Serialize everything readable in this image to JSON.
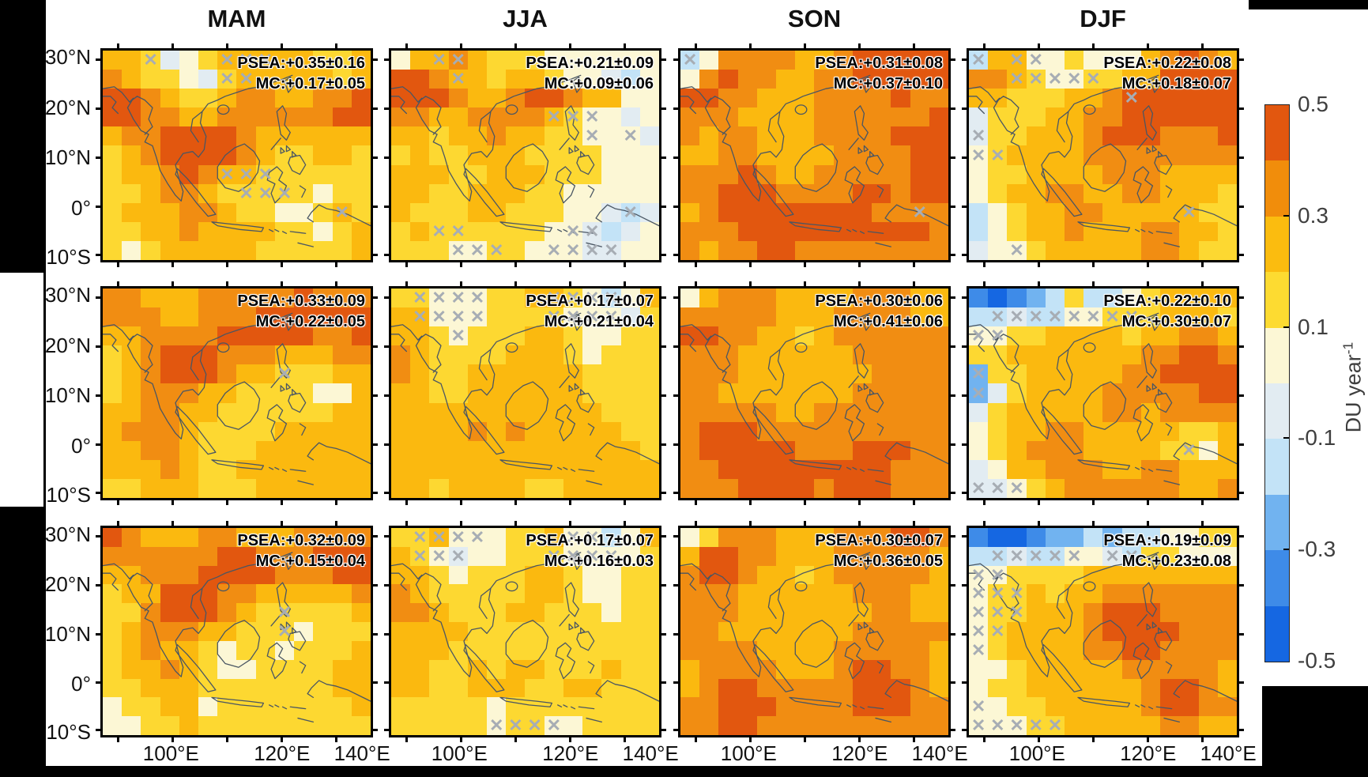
{
  "figure": {
    "col_titles": [
      "MAM",
      "JJA",
      "SON",
      "DJF"
    ],
    "y_tick_labels": [
      "30°N",
      "20°N",
      "10°N",
      "0°",
      "10°S"
    ],
    "x_tick_labels": [
      "100°E",
      "120°E",
      "140°E"
    ],
    "hatch_glyph": "✕",
    "background_color": "#ffffff",
    "frame_color": "#000000"
  },
  "colorbar": {
    "tick_labels": [
      "0.5",
      "0.3",
      "0.1",
      "-0.1",
      "-0.3",
      "-0.5"
    ],
    "unit_main": "DU year",
    "unit_sup": "-1",
    "segment_colors": [
      "#e2570f",
      "#f18d0b",
      "#fbbc0f",
      "#fddb31",
      "#fcf7d5",
      "#e2ecf2",
      "#c3e3f7",
      "#71b3f0",
      "#3e8be8",
      "#1567e2"
    ],
    "value_range": [
      -0.5,
      0.5
    ]
  },
  "palette": {
    "0": "#fcf7d5",
    "1": "#fdd831",
    "2": "#fbb90f",
    "3": "#f18d12",
    "4": "#e2570f",
    "5": "#e2ecf2",
    "6": "#c3e3f7",
    "7": "#71b3f0",
    "8": "#3e8be8",
    "9": "#1567e2"
  },
  "chart_data": {
    "type": "heatmap",
    "title": "",
    "columns": [
      "MAM",
      "JJA",
      "SON",
      "DJF"
    ],
    "n_rows": 3,
    "xlabel_ticks": [
      "100°E",
      "120°E",
      "140°E"
    ],
    "ylabel_ticks": [
      "30°N",
      "20°N",
      "10°N",
      "0°",
      "10°S"
    ],
    "lon_range_approx": [
      87,
      137
    ],
    "lat_range_approx": [
      -12,
      32
    ],
    "colorbar_unit": "DU year-1",
    "colorbar_ticks": [
      0.5,
      0.3,
      0.1,
      -0.1,
      -0.3,
      -0.5
    ],
    "panels": [
      {
        "row": 1,
        "season": "MAM",
        "psea_label": "PSEA:+0.35±0.16",
        "mc_label": "MC:+0.17±0.05",
        "psea_value": 0.35,
        "psea_err": 0.16,
        "mc_value": 0.17,
        "mc_err": 0.05,
        "grid": [
          "22150122222112",
          "32110512222212",
          "44321123322334",
          "44332233333344",
          "23344443222222",
          "12344443211221",
          "12234322111111",
          "11233211111011",
          "12223321100121",
          "11223222211012",
          "10122222111112"
        ],
        "hatch": [
          [
            0,
            2
          ],
          [
            0,
            6
          ],
          [
            0,
            7
          ],
          [
            0,
            8
          ],
          [
            1,
            6
          ],
          [
            1,
            7
          ],
          [
            6,
            6
          ],
          [
            6,
            7
          ],
          [
            6,
            8
          ],
          [
            7,
            7
          ],
          [
            7,
            8
          ],
          [
            7,
            9
          ],
          [
            8,
            12
          ]
        ]
      },
      {
        "row": 1,
        "season": "JJA",
        "psea_label": "PSEA:+0.21±0.09",
        "mc_label": "MC:+0.09±0.06",
        "psea_value": 0.21,
        "psea_err": 0.09,
        "mc_value": 0.09,
        "mc_err": 0.06,
        "grid": [
          "02232111000000",
          "44322122100560",
          "44432234432200",
          "33223333210050",
          "22122322110005",
          "12112221111000",
          "22211222111000",
          "22112221100000",
          "21112211100565",
          "12111111005650",
          "11100110005500"
        ],
        "hatch": [
          [
            0,
            2
          ],
          [
            0,
            3
          ],
          [
            1,
            3
          ],
          [
            3,
            8
          ],
          [
            3,
            9
          ],
          [
            3,
            10
          ],
          [
            4,
            10
          ],
          [
            4,
            12
          ],
          [
            9,
            2
          ],
          [
            9,
            3
          ],
          [
            10,
            3
          ],
          [
            10,
            4
          ],
          [
            10,
            5
          ],
          [
            9,
            9
          ],
          [
            9,
            10
          ],
          [
            10,
            8
          ],
          [
            10,
            9
          ],
          [
            10,
            10
          ],
          [
            10,
            11
          ],
          [
            8,
            12
          ]
        ]
      },
      {
        "row": 1,
        "season": "SON",
        "psea_label": "PSEA:+0.31±0.08",
        "mc_label": "MC:+0.37±0.10",
        "psea_value": 0.31,
        "psea_err": 0.08,
        "mc_value": 0.37,
        "mc_err": 0.1,
        "grid": [
          "60333322344444",
          "03433223344444",
          "44332223333433",
          "33322223333334",
          "32332223333444",
          "22332222333344",
          "33343223333344",
          "33444333344344",
          "23444444443333",
          "33344444444443",
          "32334433333333"
        ],
        "hatch": [
          [
            0,
            0
          ],
          [
            8,
            12
          ]
        ]
      },
      {
        "row": 1,
        "season": "DJF",
        "psea_label": "PSEA:+0.22±0.08",
        "mc_label": "MC:+0.18±0.07",
        "psea_value": 0.22,
        "psea_err": 0.08,
        "mc_value": 0.18,
        "mc_err": 0.07,
        "grid": [
          "62200100023432",
          "33210011224444",
          "22111223444444",
          "51112233444444",
          "51122234443334",
          "01222233333333",
          "01122223332222",
          "01223322332221",
          "60122332222211",
          "60122322233221",
          "50012222233211"
        ],
        "hatch": [
          [
            0,
            0
          ],
          [
            0,
            2
          ],
          [
            0,
            3
          ],
          [
            1,
            2
          ],
          [
            1,
            3
          ],
          [
            1,
            4
          ],
          [
            1,
            5
          ],
          [
            1,
            6
          ],
          [
            2,
            8
          ],
          [
            4,
            0
          ],
          [
            5,
            0
          ],
          [
            5,
            1
          ],
          [
            8,
            11
          ],
          [
            10,
            2
          ]
        ]
      },
      {
        "row": 2,
        "season": "MAM",
        "psea_label": "PSEA:+0.33±0.09",
        "mc_label": "MC:+0.22±0.05",
        "psea_value": 0.33,
        "psea_err": 0.09,
        "mc_value": 0.22,
        "mc_err": 0.05,
        "grid": [
          "33222333334333",
          "33322333444444",
          "22333344444334",
          "12344433322233",
          "12344432211122",
          "12333221111002",
          "22332211111122",
          "23332111122222",
          "22332111222222",
          "22232112222222",
          "11222111222222"
        ],
        "hatch": [
          [
            4,
            9
          ]
        ]
      },
      {
        "row": 2,
        "season": "JJA",
        "psea_label": "PSEA:+0.17±0.07",
        "mc_label": "MC:+0.21±0.04",
        "psea_value": 0.17,
        "psea_err": 0.07,
        "mc_value": 0.21,
        "mc_err": 0.04,
        "grid": [
          "11000112210602",
          "22000111100051",
          "22101112210011",
          "32111122210111",
          "32112222221111",
          "22112222221111",
          "22222222222111",
          "22223232222211",
          "22222222222221",
          "22222222222222",
          "22122221122222"
        ],
        "hatch": [
          [
            0,
            1
          ],
          [
            0,
            2
          ],
          [
            0,
            3
          ],
          [
            0,
            4
          ],
          [
            1,
            1
          ],
          [
            1,
            2
          ],
          [
            1,
            3
          ],
          [
            1,
            4
          ],
          [
            2,
            3
          ],
          [
            0,
            8
          ],
          [
            0,
            9
          ],
          [
            0,
            10
          ],
          [
            0,
            11
          ],
          [
            1,
            8
          ],
          [
            1,
            9
          ],
          [
            1,
            10
          ],
          [
            1,
            11
          ]
        ]
      },
      {
        "row": 2,
        "season": "SON",
        "psea_label": "PSEA:+0.30±0.06",
        "mc_label": "MC:+0.41±0.06",
        "psea_value": 0.3,
        "psea_err": 0.06,
        "mc_value": 0.41,
        "mc_err": 0.06,
        "grid": [
          "02333222233322",
          "33333222333322",
          "44332212333333",
          "33322222233333",
          "33322222223333",
          "33222222233333",
          "33333223333333",
          "34443333333333",
          "34444433344433",
          "33444444444333",
          "33344443444333"
        ],
        "hatch": []
      },
      {
        "row": 2,
        "season": "DJF",
        "psea_label": "PSEA:+0.22±0.10",
        "mc_label": "MC:+0.30±0.07",
        "psea_value": 0.22,
        "psea_err": 0.1,
        "mc_value": 0.3,
        "mc_err": 0.07,
        "grid": [
          "89876166012222",
          "66566001112221",
          "00112222122332",
          "11222222233443",
          "71122222334444",
          "75122223333344",
          "51222223323333",
          "01223322222112",
          "01233322221102",
          "50223332233222",
          "55012333333223"
        ],
        "hatch": [
          [
            1,
            1
          ],
          [
            1,
            2
          ],
          [
            1,
            3
          ],
          [
            1,
            4
          ],
          [
            1,
            5
          ],
          [
            1,
            6
          ],
          [
            1,
            7
          ],
          [
            1,
            8
          ],
          [
            2,
            0
          ],
          [
            2,
            1
          ],
          [
            4,
            0
          ],
          [
            5,
            0
          ],
          [
            8,
            11
          ],
          [
            10,
            0
          ],
          [
            10,
            1
          ],
          [
            10,
            2
          ]
        ]
      },
      {
        "row": 3,
        "season": "MAM",
        "psea_label": "PSEA:+0.32±0.09",
        "mc_label": "MC:+0.15±0.04",
        "psea_value": 0.32,
        "psea_err": 0.09,
        "mc_value": 0.15,
        "mc_err": 0.04,
        "grid": [
          "43222332223333",
          "33333344333444",
          "22333444433344",
          "12244433222223",
          "11344432111112",
          "12333221110111",
          "12322101101112",
          "12232100111122",
          "11222111111122",
          "01122011111112",
          "00112111111111"
        ],
        "hatch": [
          [
            4,
            9
          ],
          [
            5,
            9
          ]
        ]
      },
      {
        "row": 3,
        "season": "JJA",
        "psea_label": "PSEA:+0.17±0.07",
        "mc_label": "MC:+0.16±0.03",
        "psea_value": 0.17,
        "psea_err": 0.07,
        "mc_value": 0.16,
        "mc_err": 0.03,
        "grid": [
          "11200011200602",
          "21050011100001",
          "22101112210011",
          "32111112210011",
          "33211122111011",
          "22221111111111",
          "22211111111111",
          "22112122111211",
          "22112221122111",
          "11111011111111",
          "11111011001111"
        ],
        "hatch": [
          [
            0,
            1
          ],
          [
            0,
            2
          ],
          [
            0,
            3
          ],
          [
            0,
            4
          ],
          [
            1,
            1
          ],
          [
            1,
            2
          ],
          [
            1,
            3
          ],
          [
            0,
            9
          ],
          [
            0,
            10
          ],
          [
            1,
            8
          ],
          [
            1,
            9
          ],
          [
            1,
            10
          ],
          [
            1,
            11
          ],
          [
            10,
            5
          ],
          [
            10,
            6
          ],
          [
            10,
            7
          ],
          [
            10,
            8
          ]
        ]
      },
      {
        "row": 3,
        "season": "SON",
        "psea_label": "PSEA:+0.30±0.07",
        "mc_label": "MC:+0.36±0.05",
        "psea_value": 0.3,
        "psea_err": 0.07,
        "mc_value": 0.36,
        "mc_err": 0.05,
        "grid": [
          "01333222333443",
          "24433222333332",
          "34432212333332",
          "33322222233322",
          "33322222223322",
          "33222222233333",
          "33332222333332",
          "23333222344332",
          "23443333344432",
          "33444333344433",
          "33443333333333"
        ],
        "hatch": []
      },
      {
        "row": 3,
        "season": "DJF",
        "psea_label": "PSEA:+0.19±0.09",
        "mc_label": "MC:+0.23±0.08",
        "psea_value": 0.19,
        "psea_err": 0.09,
        "mc_value": 0.23,
        "mc_err": 0.08,
        "grid": [
          "89987767660011",
          "66566005611000",
          "00111122222222",
          "01121223333333",
          "01122234443333",
          "01222234444333",
          "01222233443333",
          "00122222333332",
          "01122222234432",
          "00112222234433",
          "00011222223322"
        ],
        "hatch": [
          [
            1,
            1
          ],
          [
            1,
            2
          ],
          [
            1,
            3
          ],
          [
            1,
            4
          ],
          [
            1,
            5
          ],
          [
            1,
            7
          ],
          [
            1,
            8
          ],
          [
            2,
            0
          ],
          [
            2,
            1
          ],
          [
            3,
            0
          ],
          [
            3,
            1
          ],
          [
            3,
            2
          ],
          [
            4,
            0
          ],
          [
            4,
            1
          ],
          [
            4,
            2
          ],
          [
            5,
            0
          ],
          [
            5,
            1
          ],
          [
            6,
            0
          ],
          [
            9,
            0
          ],
          [
            10,
            0
          ],
          [
            10,
            1
          ],
          [
            10,
            2
          ],
          [
            10,
            3
          ],
          [
            10,
            4
          ]
        ]
      }
    ]
  }
}
